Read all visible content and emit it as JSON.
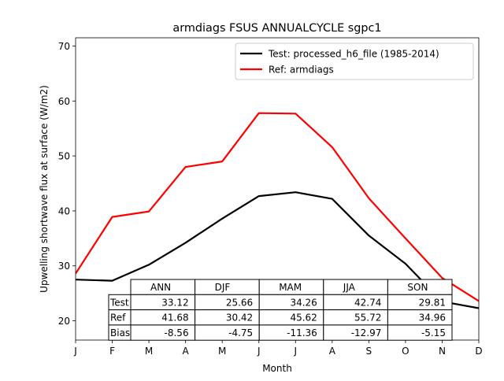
{
  "chart_data": {
    "type": "line",
    "title": "armdiags FSUS ANNUALCYCLE sgpc1",
    "xlabel": "Month",
    "ylabel": "Upwelling shortwave flux at surface (W/m2)",
    "categories": [
      "J",
      "F",
      "M",
      "A",
      "M",
      "J",
      "J",
      "A",
      "S",
      "O",
      "N",
      "D"
    ],
    "ylim": [
      16.5,
      71.5
    ],
    "yticks": [
      20,
      30,
      40,
      50,
      60,
      70
    ],
    "legend_position": "top-right",
    "series": [
      {
        "name": "Test: processed_h6_file (1985-2014)",
        "color": "#000000",
        "values": [
          27.5,
          27.3,
          30.2,
          34.2,
          38.6,
          42.7,
          43.4,
          42.2,
          35.5,
          30.4,
          23.5,
          22.3
        ]
      },
      {
        "name": "Ref: armdiags",
        "color": "#ff0000",
        "values": [
          28.6,
          38.9,
          39.9,
          48.0,
          49.0,
          57.8,
          57.7,
          51.6,
          42.3,
          35.0,
          27.8,
          23.6
        ]
      }
    ],
    "table": {
      "columns": [
        "ANN",
        "DJF",
        "MAM",
        "JJA",
        "SON"
      ],
      "rows": [
        {
          "label": "Test",
          "values": [
            "33.12",
            "25.66",
            "34.26",
            "42.74",
            "29.81"
          ]
        },
        {
          "label": "Ref",
          "values": [
            "41.68",
            "30.42",
            "45.62",
            "55.72",
            "34.96"
          ]
        },
        {
          "label": "Bias",
          "values": [
            "-8.56",
            "-4.75",
            "-11.36",
            "-12.97",
            "-5.15"
          ]
        }
      ]
    }
  }
}
